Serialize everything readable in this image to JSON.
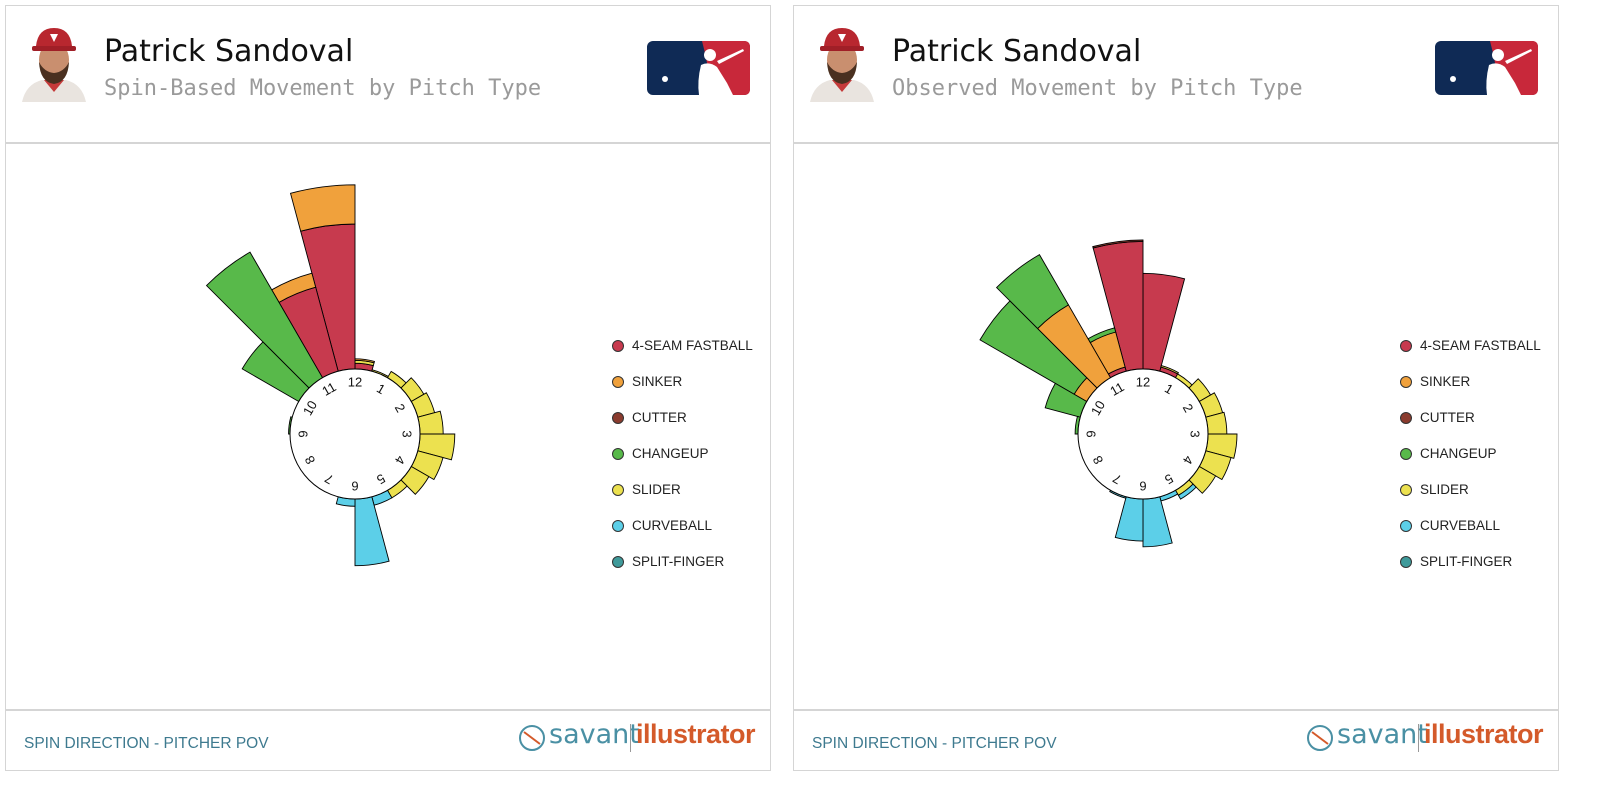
{
  "colors": {
    "four_seam": "#c73a4e",
    "sinker": "#f0a13c",
    "cutter": "#8a3b2e",
    "changeup": "#58b94a",
    "slider": "#ece14f",
    "curveball": "#5ccfe8",
    "split_finger": "#3f9a9a",
    "footer_text": "#3e7a8f"
  },
  "panels": [
    {
      "player_name": "Patrick Sandoval",
      "subtitle": "Spin-Based Movement by Pitch Type",
      "footer_label": "SPIN DIRECTION - PITCHER POV",
      "brand_left": "savant",
      "brand_right": "illustrator"
    },
    {
      "player_name": "Patrick Sandoval",
      "subtitle": "Observed Movement by Pitch Type",
      "footer_label": "SPIN DIRECTION - PITCHER POV",
      "brand_left": "savant",
      "brand_right": "illustrator"
    }
  ],
  "chart_data": [
    {
      "type": "radial-bar",
      "title": "Spin-Based Movement by Pitch Type",
      "clock_labels": [
        "12",
        "1",
        "2",
        "3",
        "4",
        "5",
        "6",
        "7",
        "8",
        "9",
        "10",
        "11"
      ],
      "legend": [
        {
          "name": "4-SEAM FASTBALL",
          "color": "#c73a4e"
        },
        {
          "name": "SINKER",
          "color": "#f0a13c"
        },
        {
          "name": "CUTTER",
          "color": "#8a3b2e"
        },
        {
          "name": "CHANGEUP",
          "color": "#58b94a"
        },
        {
          "name": "SLIDER",
          "color": "#ece14f"
        },
        {
          "name": "CURVEBALL",
          "color": "#5ccfe8"
        },
        {
          "name": "SPLIT-FINGER",
          "color": "#3f9a9a"
        }
      ],
      "bars": [
        {
          "clock_start": 12.0,
          "clock_end": 12.5,
          "stack": [
            {
              "pitch": "4-SEAM FASTBALL",
              "value": 4
            },
            {
              "pitch": "SLIDER",
              "value": 2
            },
            {
              "pitch": "SINKER",
              "value": 1
            }
          ]
        },
        {
          "clock_start": 11.5,
          "clock_end": 12.0,
          "stack": [
            {
              "pitch": "4-SEAM FASTBALL",
              "value": 100
            },
            {
              "pitch": "SINKER",
              "value": 27
            }
          ]
        },
        {
          "clock_start": 11.0,
          "clock_end": 11.5,
          "stack": [
            {
              "pitch": "4-SEAM FASTBALL",
              "value": 60
            },
            {
              "pitch": "SINKER",
              "value": 10
            }
          ]
        },
        {
          "clock_start": 10.5,
          "clock_end": 11.0,
          "stack": [
            {
              "pitch": "CHANGEUP",
              "value": 100
            }
          ]
        },
        {
          "clock_start": 10.0,
          "clock_end": 10.5,
          "stack": [
            {
              "pitch": "CHANGEUP",
              "value": 45
            }
          ]
        },
        {
          "clock_start": 9.0,
          "clock_end": 9.5,
          "stack": [
            {
              "pitch": "CHANGEUP",
              "value": 1
            }
          ]
        },
        {
          "clock_start": 12.5,
          "clock_end": 13.0,
          "stack": [
            {
              "pitch": "SLIDER",
              "value": 1
            }
          ]
        },
        {
          "clock_start": 13.0,
          "clock_end": 13.5,
          "stack": [
            {
              "pitch": "SLIDER",
              "value": 5
            }
          ]
        },
        {
          "clock_start": 13.5,
          "clock_end": 14.0,
          "stack": [
            {
              "pitch": "SLIDER",
              "value": 10
            }
          ]
        },
        {
          "clock_start": 14.0,
          "clock_end": 14.5,
          "stack": [
            {
              "pitch": "SLIDER",
              "value": 12
            }
          ]
        },
        {
          "clock_start": 14.5,
          "clock_end": 15.0,
          "stack": [
            {
              "pitch": "SLIDER",
              "value": 16
            }
          ]
        },
        {
          "clock_start": 15.0,
          "clock_end": 15.5,
          "stack": [
            {
              "pitch": "SLIDER",
              "value": 24
            }
          ]
        },
        {
          "clock_start": 15.5,
          "clock_end": 16.0,
          "stack": [
            {
              "pitch": "SLIDER",
              "value": 18
            }
          ]
        },
        {
          "clock_start": 16.0,
          "clock_end": 16.5,
          "stack": [
            {
              "pitch": "SLIDER",
              "value": 14
            }
          ]
        },
        {
          "clock_start": 16.5,
          "clock_end": 17.0,
          "stack": [
            {
              "pitch": "SLIDER",
              "value": 6
            }
          ]
        },
        {
          "clock_start": 17.0,
          "clock_end": 17.5,
          "stack": [
            {
              "pitch": "CURVEBALL",
              "value": 6
            }
          ]
        },
        {
          "clock_start": 17.5,
          "clock_end": 18.0,
          "stack": [
            {
              "pitch": "CURVEBALL",
              "value": 46
            }
          ]
        },
        {
          "clock_start": 18.0,
          "clock_end": 18.5,
          "stack": [
            {
              "pitch": "CURVEBALL",
              "value": 5
            }
          ]
        }
      ]
    },
    {
      "type": "radial-bar",
      "title": "Observed Movement by Pitch Type",
      "clock_labels": [
        "12",
        "1",
        "2",
        "3",
        "4",
        "5",
        "6",
        "7",
        "8",
        "9",
        "10",
        "11"
      ],
      "legend": [
        {
          "name": "4-SEAM FASTBALL",
          "color": "#c73a4e"
        },
        {
          "name": "SINKER",
          "color": "#f0a13c"
        },
        {
          "name": "CUTTER",
          "color": "#8a3b2e"
        },
        {
          "name": "CHANGEUP",
          "color": "#58b94a"
        },
        {
          "name": "SLIDER",
          "color": "#ece14f"
        },
        {
          "name": "CURVEBALL",
          "color": "#5ccfe8"
        },
        {
          "name": "SPLIT-FINGER",
          "color": "#3f9a9a"
        }
      ],
      "bars": [
        {
          "clock_start": 12.0,
          "clock_end": 12.5,
          "stack": [
            {
              "pitch": "4-SEAM FASTBALL",
              "value": 66
            }
          ]
        },
        {
          "clock_start": 11.5,
          "clock_end": 12.0,
          "stack": [
            {
              "pitch": "4-SEAM FASTBALL",
              "value": 88
            },
            {
              "pitch": "CUTTER",
              "value": 1
            }
          ]
        },
        {
          "clock_start": 11.0,
          "clock_end": 11.5,
          "stack": [
            {
              "pitch": "4-SEAM FASTBALL",
              "value": 3
            },
            {
              "pitch": "SINKER",
              "value": 25
            },
            {
              "pitch": "CHANGEUP",
              "value": 3
            }
          ]
        },
        {
          "clock_start": 10.5,
          "clock_end": 11.0,
          "stack": [
            {
              "pitch": "SINKER",
              "value": 58
            },
            {
              "pitch": "CHANGEUP",
              "value": 40
            }
          ]
        },
        {
          "clock_start": 10.0,
          "clock_end": 10.5,
          "stack": [
            {
              "pitch": "SINKER",
              "value": 10
            },
            {
              "pitch": "CHANGEUP",
              "value": 75
            }
          ]
        },
        {
          "clock_start": 9.5,
          "clock_end": 10.0,
          "stack": [
            {
              "pitch": "CHANGEUP",
              "value": 25
            }
          ]
        },
        {
          "clock_start": 9.0,
          "clock_end": 9.5,
          "stack": [
            {
              "pitch": "CHANGEUP",
              "value": 2
            }
          ]
        },
        {
          "clock_start": 12.5,
          "clock_end": 13.0,
          "stack": [
            {
              "pitch": "4-SEAM FASTBALL",
              "value": 3
            },
            {
              "pitch": "SLIDER",
              "value": 1
            }
          ]
        },
        {
          "clock_start": 13.0,
          "clock_end": 13.5,
          "stack": [
            {
              "pitch": "SLIDER",
              "value": 3
            }
          ]
        },
        {
          "clock_start": 13.5,
          "clock_end": 14.0,
          "stack": [
            {
              "pitch": "SLIDER",
              "value": 9
            }
          ]
        },
        {
          "clock_start": 14.0,
          "clock_end": 14.5,
          "stack": [
            {
              "pitch": "SLIDER",
              "value": 12
            }
          ]
        },
        {
          "clock_start": 14.5,
          "clock_end": 15.0,
          "stack": [
            {
              "pitch": "SLIDER",
              "value": 13
            }
          ]
        },
        {
          "clock_start": 15.0,
          "clock_end": 15.5,
          "stack": [
            {
              "pitch": "SLIDER",
              "value": 20
            }
          ]
        },
        {
          "clock_start": 15.5,
          "clock_end": 16.0,
          "stack": [
            {
              "pitch": "SLIDER",
              "value": 18
            }
          ]
        },
        {
          "clock_start": 16.0,
          "clock_end": 16.5,
          "stack": [
            {
              "pitch": "SLIDER",
              "value": 13
            }
          ]
        },
        {
          "clock_start": 16.5,
          "clock_end": 17.0,
          "stack": [
            {
              "pitch": "SLIDER",
              "value": 4
            },
            {
              "pitch": "CURVEBALL",
              "value": 3
            }
          ]
        },
        {
          "clock_start": 17.0,
          "clock_end": 17.5,
          "stack": [
            {
              "pitch": "CURVEBALL",
              "value": 3
            }
          ]
        },
        {
          "clock_start": 17.5,
          "clock_end": 18.0,
          "stack": [
            {
              "pitch": "CURVEBALL",
              "value": 33
            }
          ]
        },
        {
          "clock_start": 18.0,
          "clock_end": 18.5,
          "stack": [
            {
              "pitch": "CURVEBALL",
              "value": 29
            }
          ]
        },
        {
          "clock_start": 18.5,
          "clock_end": 19.0,
          "stack": [
            {
              "pitch": "CURVEBALL",
              "value": 1
            }
          ]
        }
      ]
    }
  ]
}
